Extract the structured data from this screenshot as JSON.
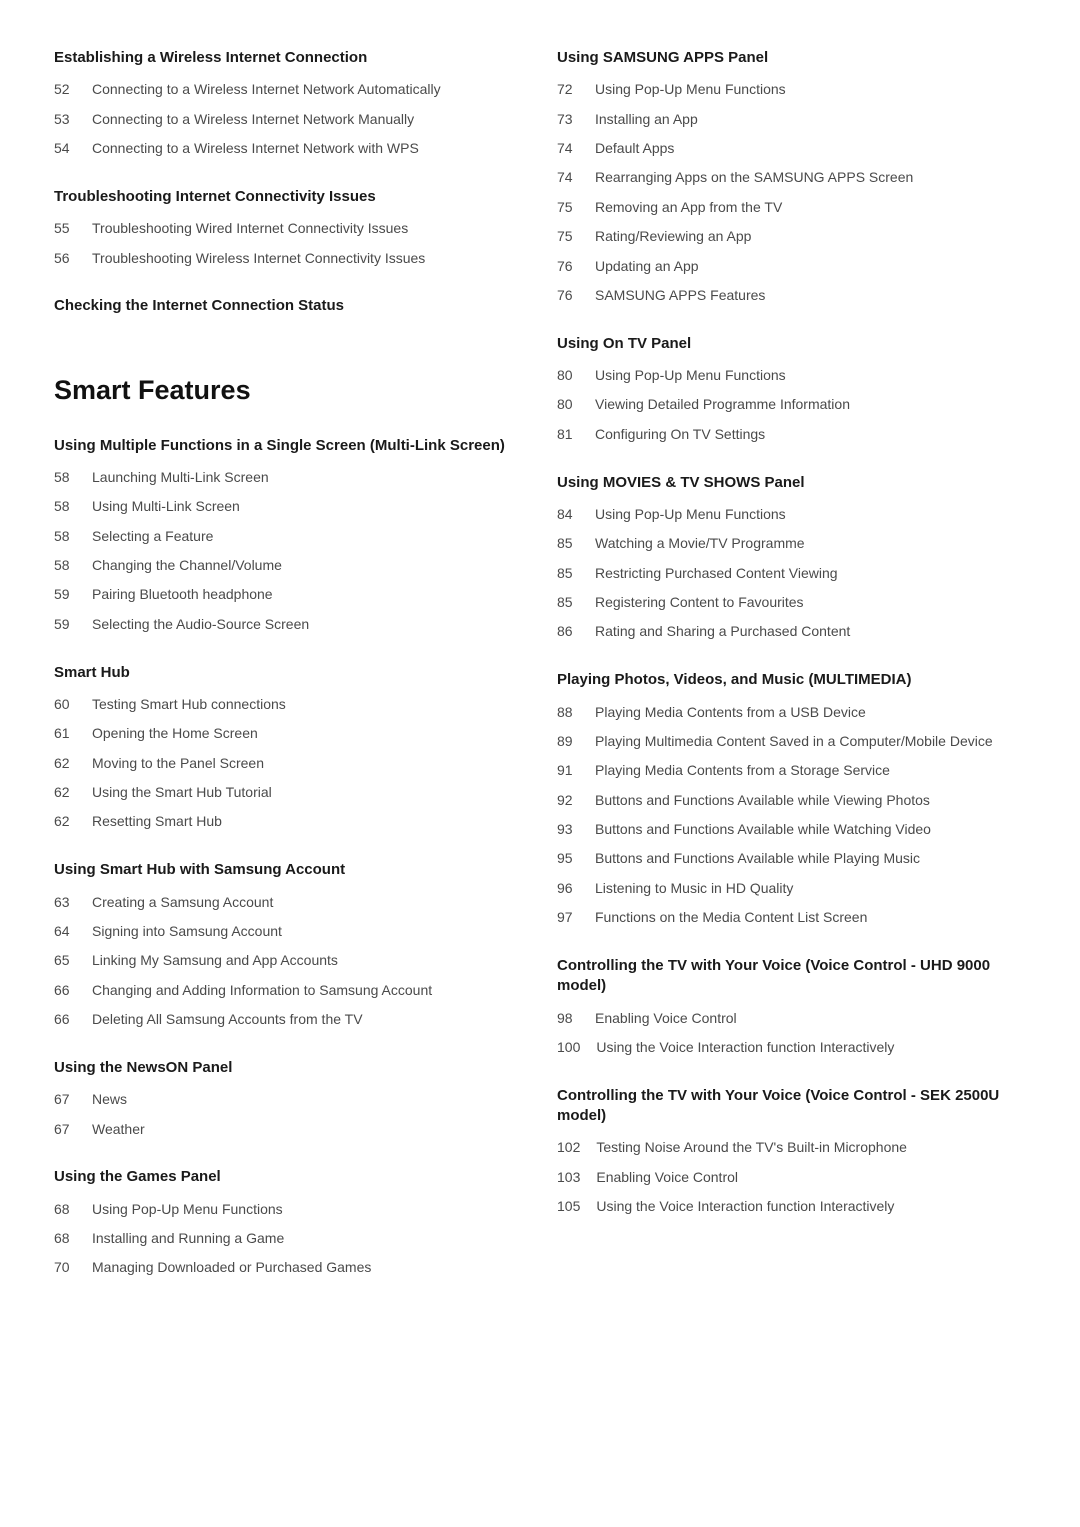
{
  "left": {
    "sections": [
      {
        "heading": "Establishing a Wireless Internet Connection",
        "first": true,
        "entries": [
          {
            "page": "52",
            "title": "Connecting to a Wireless Internet Network Automatically"
          },
          {
            "page": "53",
            "title": "Connecting to a Wireless Internet Network Manually"
          },
          {
            "page": "54",
            "title": "Connecting to a Wireless Internet Network with WPS"
          }
        ]
      },
      {
        "heading": "Troubleshooting Internet Connectivity Issues",
        "entries": [
          {
            "page": "55",
            "title": "Troubleshooting Wired Internet Connectivity Issues"
          },
          {
            "page": "56",
            "title": "Troubleshooting Wireless Internet Connectivity Issues"
          }
        ]
      },
      {
        "heading": "Checking the Internet Connection Status",
        "entries": []
      }
    ],
    "chapter": "Smart Features",
    "sections2": [
      {
        "heading": "Using Multiple Functions in a Single Screen (Multi-Link Screen)",
        "entries": [
          {
            "page": "58",
            "title": "Launching Multi-Link Screen"
          },
          {
            "page": "58",
            "title": "Using Multi-Link Screen"
          },
          {
            "page": "58",
            "title": "Selecting a Feature"
          },
          {
            "page": "58",
            "title": "Changing the Channel/Volume"
          },
          {
            "page": "59",
            "title": "Pairing Bluetooth headphone"
          },
          {
            "page": "59",
            "title": "Selecting the Audio-Source Screen"
          }
        ]
      },
      {
        "heading": "Smart Hub",
        "entries": [
          {
            "page": "60",
            "title": "Testing Smart Hub connections"
          },
          {
            "page": "61",
            "title": "Opening the Home Screen"
          },
          {
            "page": "62",
            "title": "Moving to the Panel Screen"
          },
          {
            "page": "62",
            "title": "Using the Smart Hub Tutorial"
          },
          {
            "page": "62",
            "title": "Resetting Smart Hub"
          }
        ]
      },
      {
        "heading": "Using Smart Hub with Samsung Account",
        "entries": [
          {
            "page": "63",
            "title": "Creating a Samsung Account"
          },
          {
            "page": "64",
            "title": "Signing into Samsung Account"
          },
          {
            "page": "65",
            "title": "Linking My Samsung and App Accounts"
          },
          {
            "page": "66",
            "title": "Changing and Adding Information to Samsung Account"
          },
          {
            "page": "66",
            "title": "Deleting All Samsung Accounts from the TV"
          }
        ]
      },
      {
        "heading": "Using the NewsON Panel",
        "entries": [
          {
            "page": "67",
            "title": "News"
          },
          {
            "page": "67",
            "title": "Weather"
          }
        ]
      },
      {
        "heading": "Using the Games Panel",
        "entries": [
          {
            "page": "68",
            "title": "Using Pop-Up Menu Functions"
          },
          {
            "page": "68",
            "title": "Installing and Running a Game"
          },
          {
            "page": "70",
            "title": "Managing Downloaded or Purchased Games"
          }
        ]
      }
    ]
  },
  "right": {
    "sections": [
      {
        "heading": "Using SAMSUNG APPS Panel",
        "first": true,
        "entries": [
          {
            "page": "72",
            "title": "Using Pop-Up Menu Functions"
          },
          {
            "page": "73",
            "title": "Installing an App"
          },
          {
            "page": "74",
            "title": "Default Apps"
          },
          {
            "page": "74",
            "title": "Rearranging Apps on the SAMSUNG APPS Screen"
          },
          {
            "page": "75",
            "title": "Removing an App from the TV"
          },
          {
            "page": "75",
            "title": "Rating/Reviewing an App"
          },
          {
            "page": "76",
            "title": "Updating an App"
          },
          {
            "page": "76",
            "title": "SAMSUNG APPS Features"
          }
        ]
      },
      {
        "heading": "Using On TV Panel",
        "entries": [
          {
            "page": "80",
            "title": "Using Pop-Up Menu Functions"
          },
          {
            "page": "80",
            "title": "Viewing Detailed Programme Information"
          },
          {
            "page": "81",
            "title": "Configuring On TV Settings"
          }
        ]
      },
      {
        "heading": "Using MOVIES & TV SHOWS Panel",
        "entries": [
          {
            "page": "84",
            "title": "Using Pop-Up Menu Functions"
          },
          {
            "page": "85",
            "title": "Watching a Movie/TV Programme"
          },
          {
            "page": "85",
            "title": "Restricting Purchased Content Viewing"
          },
          {
            "page": "85",
            "title": "Registering Content to Favourites"
          },
          {
            "page": "86",
            "title": "Rating and Sharing a Purchased Content"
          }
        ]
      },
      {
        "heading": "Playing Photos, Videos, and Music (MULTIMEDIA)",
        "entries": [
          {
            "page": "88",
            "title": "Playing Media Contents from a USB Device"
          },
          {
            "page": "89",
            "title": "Playing Multimedia Content Saved in a Computer/Mobile Device"
          },
          {
            "page": "91",
            "title": "Playing Media Contents from a Storage Service"
          },
          {
            "page": "92",
            "title": "Buttons and Functions Available while Viewing Photos"
          },
          {
            "page": "93",
            "title": "Buttons and Functions Available while Watching Video"
          },
          {
            "page": "95",
            "title": "Buttons and Functions Available while Playing Music"
          },
          {
            "page": "96",
            "title": "Listening to Music in HD Quality"
          },
          {
            "page": "97",
            "title": "Functions on the Media Content List Screen"
          }
        ]
      },
      {
        "heading": "Controlling the TV with Your Voice (Voice Control - UHD 9000 model)",
        "entries": [
          {
            "page": "98",
            "title": "Enabling Voice Control"
          },
          {
            "page": "100",
            "title": "Using the Voice Interaction function Interactively"
          }
        ]
      },
      {
        "heading": "Controlling the TV with Your Voice (Voice Control - SEK 2500U model)",
        "entries": [
          {
            "page": "102",
            "title": "Testing Noise Around the TV's Built-in Microphone"
          },
          {
            "page": "103",
            "title": "Enabling Voice Control"
          },
          {
            "page": "105",
            "title": "Using the Voice Interaction function Interactively"
          }
        ]
      }
    ]
  }
}
